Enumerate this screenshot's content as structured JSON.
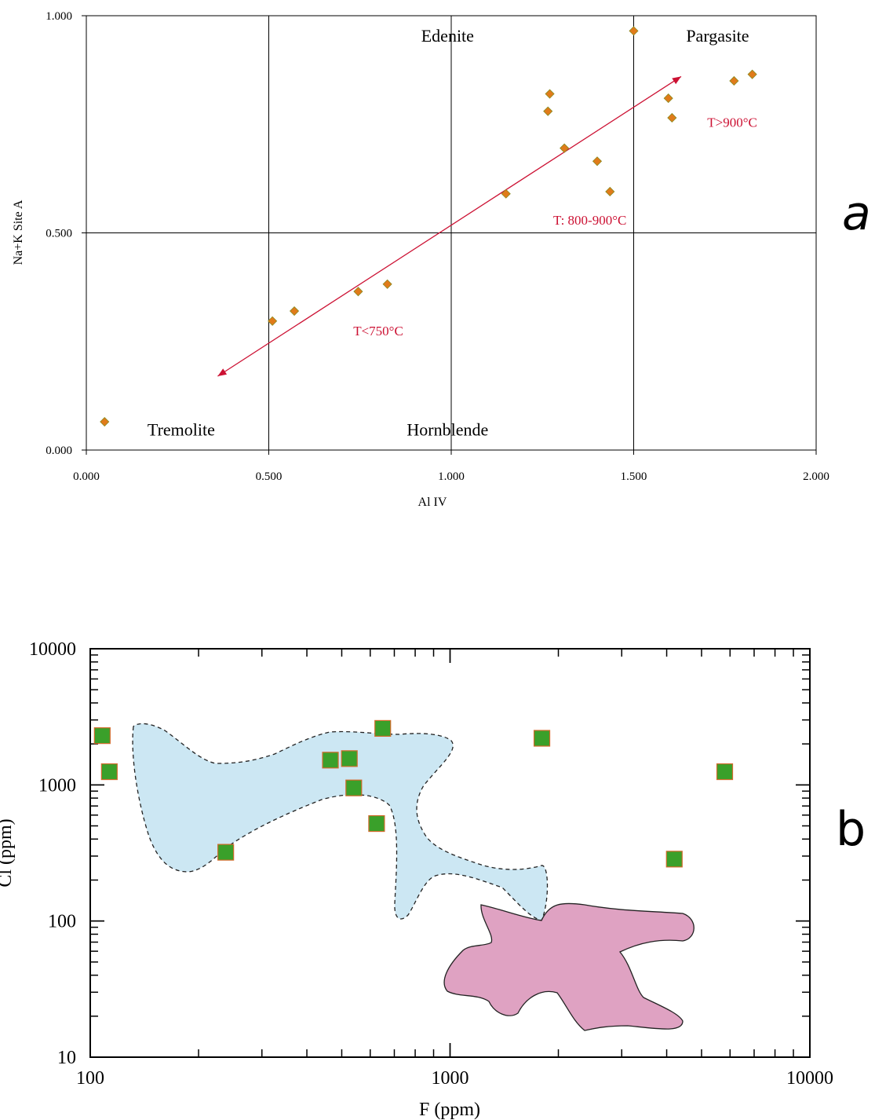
{
  "chart_data": [
    {
      "type": "scatter",
      "panel_label": "a",
      "xlabel": "Al IV",
      "ylabel": "Na+K Site A",
      "xlim": [
        0,
        2
      ],
      "ylim": [
        0,
        1
      ],
      "x_ticks": [
        "0.000",
        "0.500",
        "1.000",
        "1.500",
        "2.000"
      ],
      "y_ticks": [
        "0.000",
        "0.500",
        "1.000"
      ],
      "grid": "lines at Al IV 0.5, 1.0, 1.5 and Na+K 0.5",
      "field_labels": [
        {
          "text": "Edenite",
          "x": 0.99,
          "y": 0.955
        },
        {
          "text": "Pargasite",
          "x": 1.73,
          "y": 0.955
        },
        {
          "text": "Tremolite",
          "x": 0.26,
          "y": 0.048
        },
        {
          "text": "Hornblende",
          "x": 0.99,
          "y": 0.048
        }
      ],
      "annotations": [
        {
          "text": "T>900°C",
          "x": 1.77,
          "y": 0.755,
          "color": "#cc1133"
        },
        {
          "text": "T: 800-900°C",
          "x": 1.38,
          "y": 0.53,
          "color": "#cc1133"
        },
        {
          "text": "T<750°C",
          "x": 0.8,
          "y": 0.275,
          "color": "#cc1133"
        }
      ],
      "trend_arrow": {
        "from": [
          0.36,
          0.17
        ],
        "to": [
          1.63,
          0.86
        ],
        "color": "#cc1133",
        "double_headed": true
      },
      "marker": {
        "shape": "diamond",
        "fill": "#e07b1a",
        "stroke": "#8a8a20"
      },
      "points": [
        {
          "x": 0.05,
          "y": 0.065
        },
        {
          "x": 0.51,
          "y": 0.297
        },
        {
          "x": 0.57,
          "y": 0.32
        },
        {
          "x": 0.745,
          "y": 0.365
        },
        {
          "x": 0.825,
          "y": 0.382
        },
        {
          "x": 1.15,
          "y": 0.59
        },
        {
          "x": 1.265,
          "y": 0.78
        },
        {
          "x": 1.27,
          "y": 0.82
        },
        {
          "x": 1.31,
          "y": 0.695
        },
        {
          "x": 1.4,
          "y": 0.665
        },
        {
          "x": 1.435,
          "y": 0.595
        },
        {
          "x": 1.5,
          "y": 0.965
        },
        {
          "x": 1.595,
          "y": 0.81
        },
        {
          "x": 1.605,
          "y": 0.765
        },
        {
          "x": 1.775,
          "y": 0.85
        },
        {
          "x": 1.825,
          "y": 0.865
        }
      ]
    },
    {
      "type": "scatter",
      "panel_label": "b",
      "xlabel": "F (ppm)",
      "ylabel": "Cl (ppm)",
      "xscale": "log",
      "yscale": "log",
      "xlim": [
        100,
        10000
      ],
      "ylim": [
        10,
        10000
      ],
      "x_ticks": [
        "100",
        "1000",
        "10000"
      ],
      "y_ticks": [
        "10",
        "100",
        "1000",
        "10000"
      ],
      "marker": {
        "shape": "square",
        "fill": "#3aa02a",
        "stroke": "#d06a2a"
      },
      "regions": [
        {
          "fill": "#cce7f3",
          "stroke": "#222222",
          "style": "dashed"
        },
        {
          "fill": "#dfa2c2",
          "stroke": "#222222",
          "style": "solid"
        }
      ],
      "points": [
        {
          "x": 108,
          "y": 2300
        },
        {
          "x": 113,
          "y": 1250
        },
        {
          "x": 238,
          "y": 320
        },
        {
          "x": 465,
          "y": 1520
        },
        {
          "x": 525,
          "y": 1560
        },
        {
          "x": 540,
          "y": 950
        },
        {
          "x": 625,
          "y": 520
        },
        {
          "x": 650,
          "y": 2600
        },
        {
          "x": 1800,
          "y": 2200
        },
        {
          "x": 4200,
          "y": 285
        },
        {
          "x": 5800,
          "y": 1250
        }
      ]
    }
  ]
}
